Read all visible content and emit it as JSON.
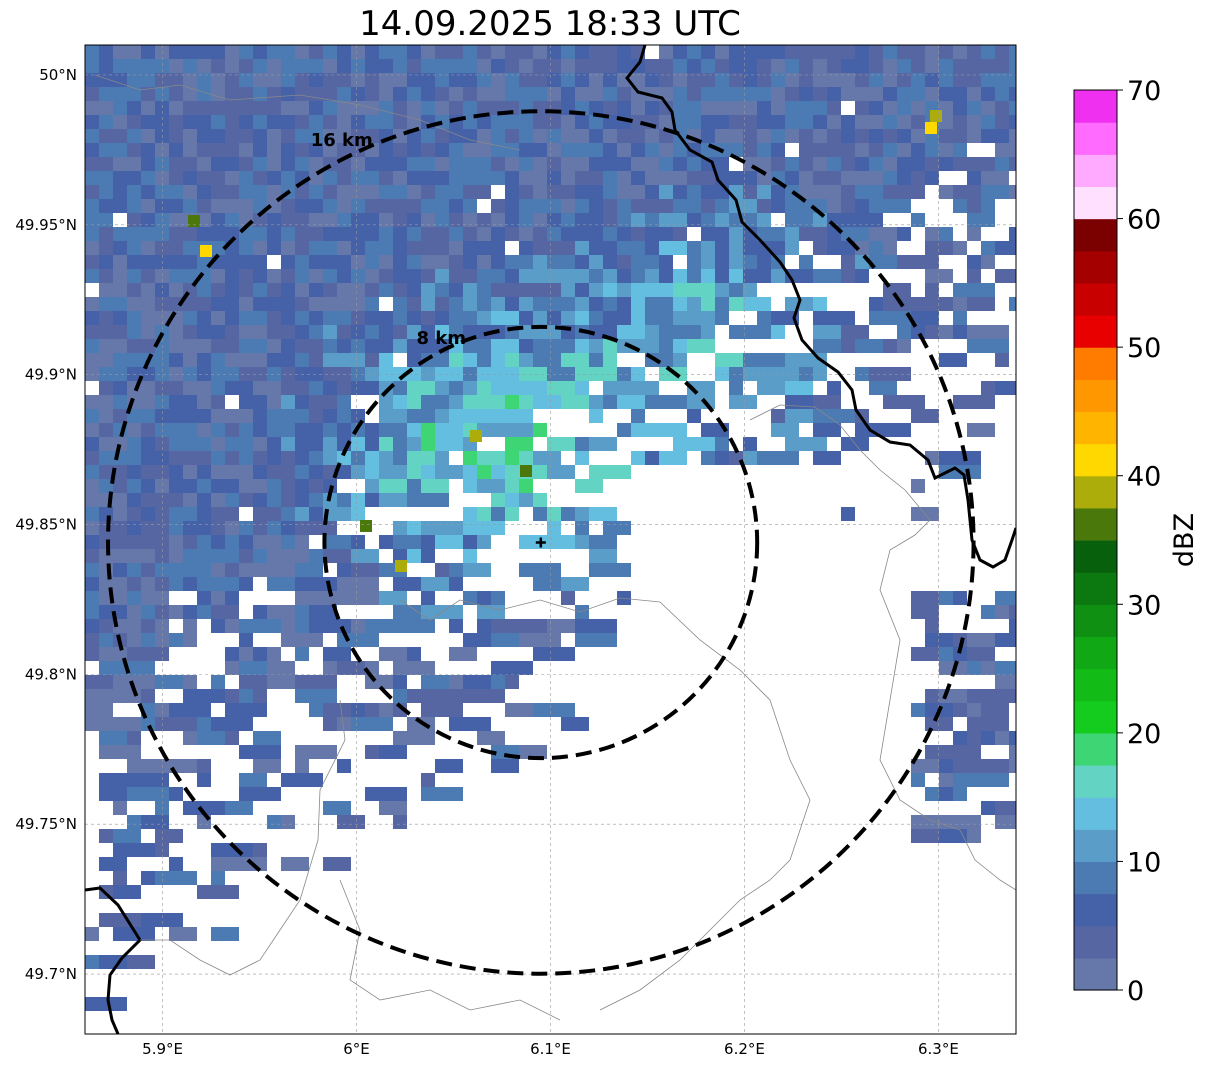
{
  "title": "14.09.2025 18:33 UTC",
  "map": {
    "lon_range": [
      5.86,
      6.34
    ],
    "lat_range": [
      49.68,
      50.01
    ],
    "lon_ticks": [
      {
        "value": 5.9,
        "label": "5.9°E"
      },
      {
        "value": 6.0,
        "label": "6°E"
      },
      {
        "value": 6.1,
        "label": "6.1°E"
      },
      {
        "value": 6.2,
        "label": "6.2°E"
      },
      {
        "value": 6.3,
        "label": "6.3°E"
      }
    ],
    "lat_ticks": [
      {
        "value": 50.0,
        "label": "50°N"
      },
      {
        "value": 49.95,
        "label": "49.95°N"
      },
      {
        "value": 49.9,
        "label": "49.9°N"
      },
      {
        "value": 49.85,
        "label": "49.85°N"
      },
      {
        "value": 49.8,
        "label": "49.8°N"
      },
      {
        "value": 49.75,
        "label": "49.75°N"
      },
      {
        "value": 49.7,
        "label": "49.7°N"
      }
    ],
    "radar_site": {
      "lon": 6.095,
      "lat": 49.844
    },
    "range_rings": [
      {
        "radius_km": 8,
        "label": "8 km"
      },
      {
        "radius_km": 16,
        "label": "16 km"
      }
    ],
    "grid": true
  },
  "colorbar": {
    "label": "dBZ",
    "min": 0,
    "max": 70,
    "ticks": [
      "0",
      "10",
      "20",
      "30",
      "40",
      "50",
      "60",
      "70"
    ],
    "colors": [
      "#6677aa",
      "#5566a3",
      "#4561a8",
      "#4c7ab3",
      "#5a9dc8",
      "#63bedf",
      "#63d3c4",
      "#3ed575",
      "#14cc1e",
      "#12bb15",
      "#10a814",
      "#0f9012",
      "#0b7810",
      "#07600c",
      "#4a780a",
      "#acac0a",
      "#ffd800",
      "#ffb400",
      "#ff9800",
      "#ff7c00",
      "#e80000",
      "#c80000",
      "#a50000",
      "#7b0000",
      "#ffe0ff",
      "#ffaaff",
      "#ff6aff",
      "#f030f0"
    ]
  }
}
